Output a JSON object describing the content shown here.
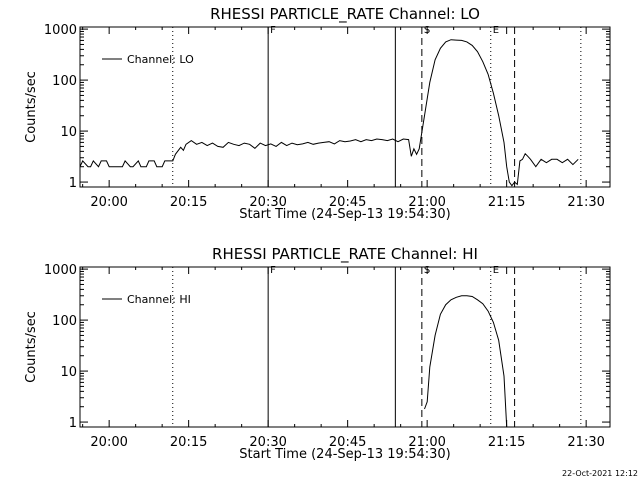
{
  "timestamp": "22-Oct-2021 12:12",
  "chart_data": [
    {
      "type": "line",
      "title": "RHESSI PARTICLE_RATE Channel: LO",
      "xlabel": "Start Time (24-Sep-13 19:54:30)",
      "ylabel": "Counts/sec",
      "x_unit": "minutes after start time",
      "xlim": [
        0,
        100
      ],
      "ylim": [
        0.8,
        1100
      ],
      "yscale": "log",
      "x_ticks": [
        "20:00",
        "20:15",
        "20:30",
        "20:45",
        "21:00",
        "21:15",
        "21:30"
      ],
      "y_ticks": [
        "1",
        "10",
        "100",
        "1000"
      ],
      "legend": "top-left",
      "markers": [
        {
          "label": "",
          "x": 0,
          "style": "dotted"
        },
        {
          "label": "",
          "x": 17.5,
          "style": "dotted"
        },
        {
          "label": "F",
          "x": 35.5,
          "style": "solid"
        },
        {
          "label": "",
          "x": 59.5,
          "style": "solid"
        },
        {
          "label": "S",
          "x": 64.5,
          "style": "dashed"
        },
        {
          "label": "E",
          "x": 77.5,
          "style": "dotted"
        },
        {
          "label": "",
          "x": 82,
          "style": "dashed"
        },
        {
          "label": "",
          "x": 94.5,
          "style": "dotted"
        }
      ],
      "series": [
        {
          "name": "Channel: LO",
          "x": [
            0,
            0.5,
            1.5,
            2,
            2.5,
            3.5,
            4,
            5,
            5.5,
            6,
            7,
            8,
            8.5,
            9.5,
            10,
            11,
            11.5,
            12.5,
            13,
            14,
            14.5,
            15.5,
            16,
            17,
            17.5,
            18,
            19,
            19.5,
            20,
            21,
            22,
            23,
            24,
            25,
            26,
            27,
            28,
            29,
            30,
            31,
            32,
            33,
            34,
            35,
            36,
            37,
            38,
            39,
            40,
            41,
            42,
            43,
            44,
            45,
            46,
            47,
            48,
            49,
            50,
            51,
            52,
            53,
            54,
            55,
            56,
            57,
            58,
            59,
            60,
            61,
            62,
            62.5,
            63,
            63.5,
            64,
            65,
            66,
            67,
            68,
            69,
            70,
            71,
            72,
            73,
            74,
            75,
            76,
            77,
            78,
            79,
            80,
            80.5,
            81,
            81.5,
            82,
            82.5,
            83,
            83.5,
            84,
            84.5,
            85,
            86,
            87,
            88,
            89,
            90,
            91,
            92,
            93,
            94
          ],
          "values": [
            2,
            2.6,
            2,
            2,
            2.6,
            2,
            2.6,
            2.6,
            2,
            2,
            2,
            2,
            2.6,
            2,
            2,
            2.6,
            2,
            2,
            2.6,
            2.6,
            2,
            2,
            2.6,
            2.6,
            2.6,
            3.5,
            4.8,
            4.2,
            5.5,
            6.5,
            5.5,
            6,
            5.2,
            5.8,
            5,
            4.8,
            6,
            5.5,
            5.2,
            5.8,
            5.5,
            4.6,
            5.8,
            5.2,
            5.6,
            5,
            6,
            5.2,
            5.8,
            5.4,
            5.6,
            6,
            5.5,
            5.8,
            6,
            6.2,
            5.6,
            6.5,
            6.2,
            6.4,
            6.8,
            6.2,
            6.8,
            6.5,
            7,
            6.8,
            6.5,
            7,
            6.2,
            7,
            6.8,
            3.2,
            4.5,
            3.5,
            4.5,
            20,
            90,
            250,
            420,
            560,
            620,
            610,
            600,
            560,
            480,
            360,
            230,
            130,
            55,
            20,
            6,
            2,
            1,
            0.85,
            1,
            0.9,
            2.6,
            2.8,
            3.6,
            3.2,
            2.8,
            2,
            2.8,
            2.4,
            2.8,
            2.8,
            2.4,
            2.8,
            2.2,
            2.8
          ]
        }
      ]
    },
    {
      "type": "line",
      "title": "RHESSI PARTICLE_RATE Channel: HI",
      "xlabel": "Start Time (24-Sep-13 19:54:30)",
      "ylabel": "Counts/sec",
      "x_unit": "minutes after start time",
      "xlim": [
        0,
        100
      ],
      "ylim": [
        0.8,
        1100
      ],
      "yscale": "log",
      "x_ticks": [
        "20:00",
        "20:15",
        "20:30",
        "20:45",
        "21:00",
        "21:15",
        "21:30"
      ],
      "y_ticks": [
        "1",
        "10",
        "100",
        "1000"
      ],
      "legend": "top-left",
      "markers": [
        {
          "label": "",
          "x": 0,
          "style": "dotted"
        },
        {
          "label": "",
          "x": 17.5,
          "style": "dotted"
        },
        {
          "label": "F",
          "x": 35.5,
          "style": "solid"
        },
        {
          "label": "",
          "x": 59.5,
          "style": "solid"
        },
        {
          "label": "S",
          "x": 64.5,
          "style": "dashed"
        },
        {
          "label": "E",
          "x": 77.5,
          "style": "dotted"
        },
        {
          "label": "",
          "x": 82,
          "style": "dashed"
        },
        {
          "label": "",
          "x": 94.5,
          "style": "dotted"
        }
      ],
      "series": [
        {
          "name": "Channel: HI",
          "x": [
            65,
            65.5,
            66,
            67,
            68,
            69,
            70,
            71,
            72,
            73,
            74,
            75,
            76,
            77,
            78,
            79,
            80,
            80.5
          ],
          "values": [
            1.8,
            2.5,
            12,
            50,
            130,
            200,
            250,
            280,
            300,
            300,
            290,
            250,
            210,
            150,
            90,
            40,
            8,
            0.8
          ]
        }
      ]
    }
  ]
}
